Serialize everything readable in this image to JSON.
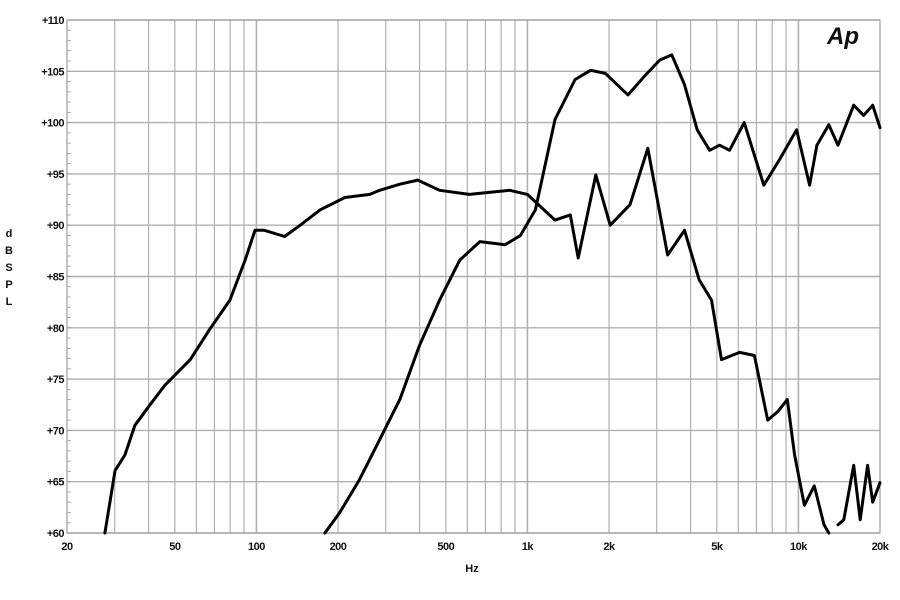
{
  "chart_data": {
    "type": "line",
    "title": "",
    "xlabel": "Hz",
    "ylabel": "dB SPL",
    "xscale": "log",
    "xlim": [
      20,
      20000
    ],
    "ylim": [
      60,
      110
    ],
    "grid": true,
    "legend": "none",
    "logo_text": "Ap",
    "line_color": "#000000",
    "grid_color": "#b0b0b0",
    "x_ticks": [
      {
        "value": 20,
        "label": "20"
      },
      {
        "value": 50,
        "label": "50"
      },
      {
        "value": 100,
        "label": "100"
      },
      {
        "value": 200,
        "label": "200"
      },
      {
        "value": 500,
        "label": "500"
      },
      {
        "value": 1000,
        "label": "1k"
      },
      {
        "value": 2000,
        "label": "2k"
      },
      {
        "value": 5000,
        "label": "5k"
      },
      {
        "value": 10000,
        "label": "10k"
      },
      {
        "value": 20000,
        "label": "20k"
      }
    ],
    "y_ticks": [
      {
        "value": 60,
        "label": "+60"
      },
      {
        "value": 65,
        "label": "+65"
      },
      {
        "value": 70,
        "label": "+70"
      },
      {
        "value": 75,
        "label": "+75"
      },
      {
        "value": 80,
        "label": "+80"
      },
      {
        "value": 85,
        "label": "+85"
      },
      {
        "value": 90,
        "label": "+90"
      },
      {
        "value": 95,
        "label": "+95"
      },
      {
        "value": 100,
        "label": "+100"
      },
      {
        "value": 105,
        "label": "+105"
      },
      {
        "value": 110,
        "label": "+110"
      }
    ],
    "series": [
      {
        "points": [
          [
            27.6,
            60
          ],
          [
            30.1,
            66.1
          ],
          [
            32.7,
            67.6
          ],
          [
            35.6,
            70.5
          ],
          [
            40.5,
            72.5
          ],
          [
            45.9,
            74.4
          ],
          [
            57,
            76.9
          ],
          [
            67,
            79.8
          ],
          [
            79.8,
            82.7
          ],
          [
            90.8,
            86.6
          ],
          [
            98.8,
            89.5
          ],
          [
            107,
            89.5
          ],
          [
            127,
            88.9
          ],
          [
            145,
            90
          ],
          [
            172,
            91.5
          ],
          [
            212,
            92.7
          ],
          [
            262,
            93
          ],
          [
            285,
            93.4
          ],
          [
            338,
            94
          ],
          [
            394,
            94.4
          ],
          [
            474,
            93.4
          ],
          [
            611,
            93
          ],
          [
            860,
            93.4
          ],
          [
            1000,
            93
          ],
          [
            1264,
            90.5
          ],
          [
            1440,
            91
          ],
          [
            1540,
            86.8
          ],
          [
            1788,
            94.9
          ],
          [
            2020,
            90
          ],
          [
            2390,
            92
          ],
          [
            2780,
            97.5
          ],
          [
            3290,
            87.1
          ],
          [
            3800,
            89.5
          ],
          [
            4300,
            84.7
          ],
          [
            4780,
            82.7
          ],
          [
            5200,
            76.9
          ],
          [
            6060,
            77.6
          ],
          [
            6880,
            77.3
          ],
          [
            7700,
            71
          ],
          [
            8370,
            71.8
          ],
          [
            9100,
            73
          ],
          [
            9680,
            67.6
          ],
          [
            10520,
            62.7
          ],
          [
            11440,
            64.6
          ],
          [
            12430,
            60.8
          ],
          [
            12950,
            60
          ]
        ],
        "points_tail": [
          [
            14000,
            60.8
          ],
          [
            14700,
            61.3
          ],
          [
            16000,
            66.6
          ],
          [
            16900,
            61.3
          ],
          [
            18000,
            66.6
          ],
          [
            18800,
            63
          ],
          [
            20000,
            64.9
          ]
        ]
      },
      {
        "points": [
          [
            179,
            60
          ],
          [
            203,
            62
          ],
          [
            240,
            65.2
          ],
          [
            285,
            69.1
          ],
          [
            338,
            73
          ],
          [
            400,
            78.3
          ],
          [
            474,
            82.7
          ],
          [
            563,
            86.6
          ],
          [
            668,
            88.4
          ],
          [
            827,
            88.1
          ],
          [
            942,
            89
          ],
          [
            1070,
            91.5
          ],
          [
            1264,
            100.3
          ],
          [
            1500,
            104.2
          ],
          [
            1710,
            105.1
          ],
          [
            1940,
            104.8
          ],
          [
            2350,
            102.7
          ],
          [
            2720,
            104.6
          ],
          [
            3080,
            106.1
          ],
          [
            3410,
            106.6
          ],
          [
            3800,
            103.7
          ],
          [
            4230,
            99.3
          ],
          [
            4700,
            97.3
          ],
          [
            5120,
            97.8
          ],
          [
            5570,
            97.3
          ],
          [
            6310,
            100
          ],
          [
            7450,
            93.9
          ],
          [
            8520,
            96.4
          ],
          [
            9850,
            99.3
          ],
          [
            11000,
            93.9
          ],
          [
            11700,
            97.8
          ],
          [
            12950,
            99.8
          ],
          [
            14000,
            97.8
          ],
          [
            16000,
            101.7
          ],
          [
            17400,
            100.7
          ],
          [
            18800,
            101.7
          ],
          [
            20000,
            99.5
          ]
        ]
      }
    ]
  }
}
